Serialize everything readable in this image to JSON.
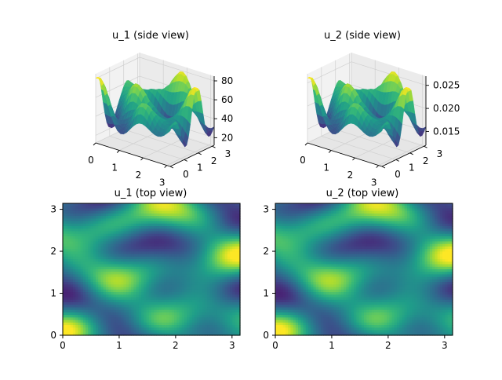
{
  "chart_data": [
    {
      "type": "surface",
      "title": "u_1 (side view)",
      "x_ticks": [
        "0",
        "1",
        "2",
        "3"
      ],
      "y_ticks": [
        "0",
        "1",
        "2",
        "3"
      ],
      "z_ticks": [
        "20",
        "40",
        "60",
        "80"
      ],
      "xlim": [
        0,
        3.14159
      ],
      "ylim": [
        0,
        3.14159
      ],
      "zlim": [
        12,
        85
      ],
      "colormap": "viridis",
      "grid": true
    },
    {
      "type": "surface",
      "title": "u_2 (side view)",
      "x_ticks": [
        "0",
        "1",
        "2",
        "3"
      ],
      "y_ticks": [
        "0",
        "1",
        "2",
        "3"
      ],
      "z_ticks": [
        "0.015",
        "0.020",
        "0.025"
      ],
      "xlim": [
        0,
        3.14159
      ],
      "ylim": [
        0,
        3.14159
      ],
      "zlim": [
        0.012,
        0.027
      ],
      "colormap": "viridis",
      "grid": true
    },
    {
      "type": "heatmap",
      "title": "u_1 (top view)",
      "x_ticks": [
        "0",
        "1",
        "2",
        "3"
      ],
      "y_ticks": [
        "0",
        "1",
        "2",
        "3"
      ],
      "xlim": [
        0,
        3.14159
      ],
      "ylim": [
        0,
        3.14159
      ],
      "colormap": "viridis"
    },
    {
      "type": "heatmap",
      "title": "u_2 (top view)",
      "x_ticks": [
        "0",
        "1",
        "2",
        "3"
      ],
      "y_ticks": [
        "0",
        "1",
        "2",
        "3"
      ],
      "xlim": [
        0,
        3.14159
      ],
      "ylim": [
        0,
        3.14159
      ],
      "colormap": "viridis"
    }
  ]
}
